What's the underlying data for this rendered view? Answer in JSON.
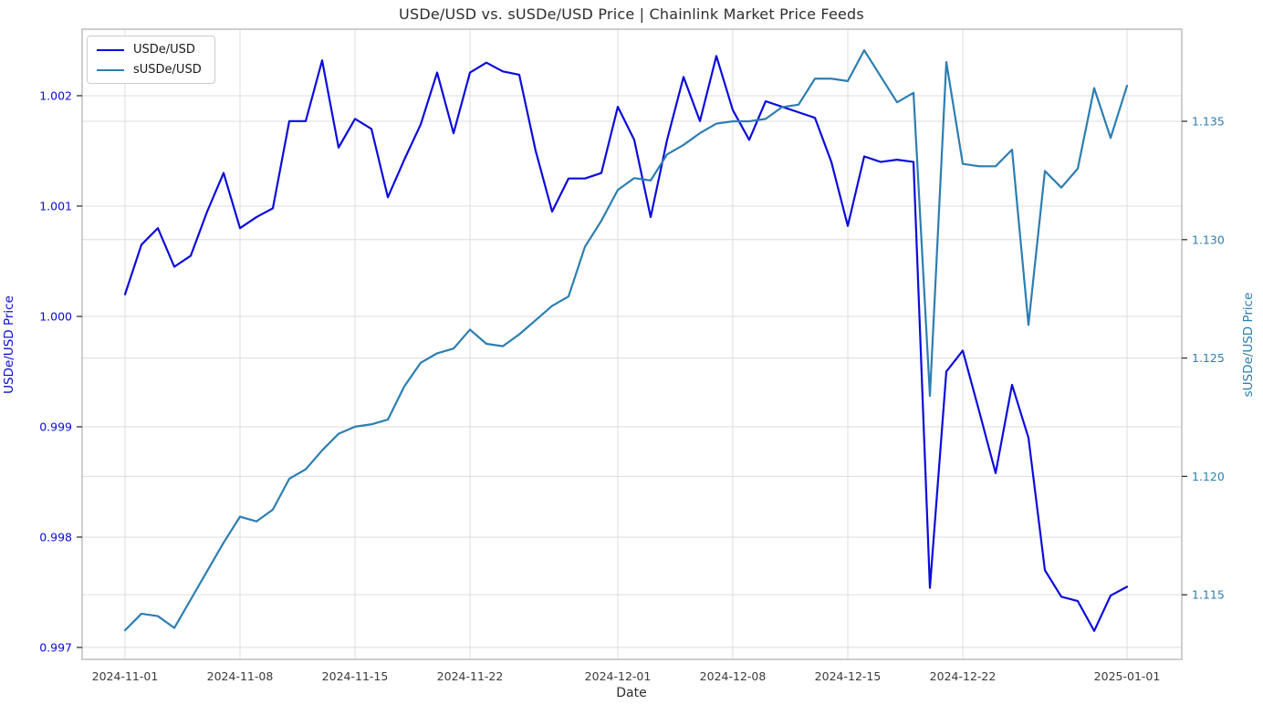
{
  "figure": {
    "title": "USDe/USD vs. sUSDe/USD Price | Chainlink Market Price Feeds"
  },
  "legend": {
    "items": [
      {
        "label": "USDe/USD",
        "color": "#0b0bdc"
      },
      {
        "label": "sUSDe/USD",
        "color": "#2c7eb2"
      }
    ]
  },
  "axes": {
    "x": {
      "title": "Date",
      "tick_label_color": "#3a3a3a",
      "ticks": [
        {
          "index": 0,
          "label": "2024-11-01"
        },
        {
          "index": 7,
          "label": "2024-11-08"
        },
        {
          "index": 14,
          "label": "2024-11-15"
        },
        {
          "index": 21,
          "label": "2024-11-22"
        },
        {
          "index": 30,
          "label": "2024-12-01"
        },
        {
          "index": 37,
          "label": "2024-12-08"
        },
        {
          "index": 44,
          "label": "2024-12-15"
        },
        {
          "index": 51,
          "label": "2024-12-22"
        },
        {
          "index": 61,
          "label": "2025-01-01"
        }
      ]
    },
    "left": {
      "title": "USDe/USD Price",
      "color": "#0b0bdc",
      "lim": [
        0.996892,
        1.002603
      ],
      "ticks": [
        {
          "value": 1.002,
          "label": "1.002"
        },
        {
          "value": 1.001,
          "label": "1.001"
        },
        {
          "value": 1.0,
          "label": "1.000"
        },
        {
          "value": 0.999,
          "label": "0.999"
        },
        {
          "value": 0.998,
          "label": "0.998"
        },
        {
          "value": 0.997,
          "label": "0.997"
        }
      ]
    },
    "right": {
      "title": "sUSDe/USD Price",
      "color": "#2c7eb2",
      "lim": [
        1.112272,
        1.13889
      ],
      "ticks": [
        {
          "value": 1.135,
          "label": "1.135"
        },
        {
          "value": 1.13,
          "label": "1.130"
        },
        {
          "value": 1.125,
          "label": "1.125"
        },
        {
          "value": 1.12,
          "label": "1.120"
        },
        {
          "value": 1.115,
          "label": "1.115"
        }
      ]
    }
  },
  "chart_data": {
    "type": "line",
    "title": "USDe/USD vs. sUSDe/USD Price | Chainlink Market Price Feeds",
    "xlabel": "Date",
    "ylabel_left": "USDe/USD Price",
    "ylabel_right": "sUSDe/USD Price",
    "grid": true,
    "legend_position": "upper left",
    "ylim_left": [
      0.996892,
      1.002603
    ],
    "ylim_right": [
      1.112272,
      1.13889
    ],
    "x": [
      "2024-11-01",
      "2024-11-02",
      "2024-11-03",
      "2024-11-04",
      "2024-11-05",
      "2024-11-06",
      "2024-11-07",
      "2024-11-08",
      "2024-11-09",
      "2024-11-10",
      "2024-11-11",
      "2024-11-12",
      "2024-11-13",
      "2024-11-14",
      "2024-11-15",
      "2024-11-16",
      "2024-11-17",
      "2024-11-18",
      "2024-11-19",
      "2024-11-20",
      "2024-11-21",
      "2024-11-22",
      "2024-11-23",
      "2024-11-24",
      "2024-11-25",
      "2024-11-26",
      "2024-11-27",
      "2024-11-28",
      "2024-11-29",
      "2024-11-30",
      "2024-12-01",
      "2024-12-02",
      "2024-12-03",
      "2024-12-04",
      "2024-12-05",
      "2024-12-06",
      "2024-12-07",
      "2024-12-08",
      "2024-12-09",
      "2024-12-10",
      "2024-12-11",
      "2024-12-12",
      "2024-12-13",
      "2024-12-14",
      "2024-12-15",
      "2024-12-16",
      "2024-12-17",
      "2024-12-18",
      "2024-12-19",
      "2024-12-20",
      "2024-12-21",
      "2024-12-22",
      "2024-12-23",
      "2024-12-24",
      "2024-12-25",
      "2024-12-26",
      "2024-12-27",
      "2024-12-28",
      "2024-12-29",
      "2024-12-30",
      "2024-12-31",
      "2025-01-01"
    ],
    "series": [
      {
        "name": "USDe/USD",
        "axis": "left",
        "color": "#0b0bdc",
        "values": [
          1.0002,
          1.00065,
          1.0008,
          1.00045,
          1.00055,
          1.00095,
          1.0013,
          1.0008,
          1.0009,
          1.00098,
          1.00177,
          1.00177,
          1.00232,
          1.00153,
          1.00179,
          1.0017,
          1.00108,
          1.00142,
          1.00174,
          1.00221,
          1.00166,
          1.00221,
          1.0023,
          1.00222,
          1.00219,
          1.0015,
          1.00095,
          1.00125,
          1.00125,
          1.0013,
          1.0019,
          1.0016,
          1.0009,
          1.0016,
          1.00217,
          1.00177,
          1.00236,
          1.00187,
          1.0016,
          1.00195,
          1.0019,
          1.00185,
          1.0018,
          1.0014,
          1.00082,
          1.00145,
          1.0014,
          1.00142,
          1.0014,
          0.99754,
          0.9995,
          0.99969,
          0.99914,
          0.99858,
          0.99938,
          0.9989,
          0.9977,
          0.99746,
          0.99742,
          0.99715,
          0.99747,
          0.99755
        ]
      },
      {
        "name": "sUSDe/USD",
        "axis": "right",
        "color": "#2c7eb2",
        "values": [
          1.1135,
          1.1142,
          1.1141,
          1.1136,
          1.1148,
          1.116,
          1.1172,
          1.1183,
          1.1181,
          1.1186,
          1.1199,
          1.1203,
          1.1211,
          1.1218,
          1.1221,
          1.1222,
          1.1224,
          1.1238,
          1.1248,
          1.1252,
          1.1254,
          1.1262,
          1.1256,
          1.1255,
          1.126,
          1.1266,
          1.1272,
          1.1276,
          1.1297,
          1.1308,
          1.1321,
          1.1326,
          1.1325,
          1.1336,
          1.134,
          1.1345,
          1.1349,
          1.135,
          1.135,
          1.1351,
          1.1356,
          1.1357,
          1.1368,
          1.1368,
          1.1367,
          1.138,
          1.1369,
          1.1358,
          1.1362,
          1.1234,
          1.1375,
          1.1332,
          1.1331,
          1.1331,
          1.1338,
          1.1264,
          1.1329,
          1.1322,
          1.133,
          1.1364,
          1.1343,
          1.1365
        ]
      }
    ]
  }
}
